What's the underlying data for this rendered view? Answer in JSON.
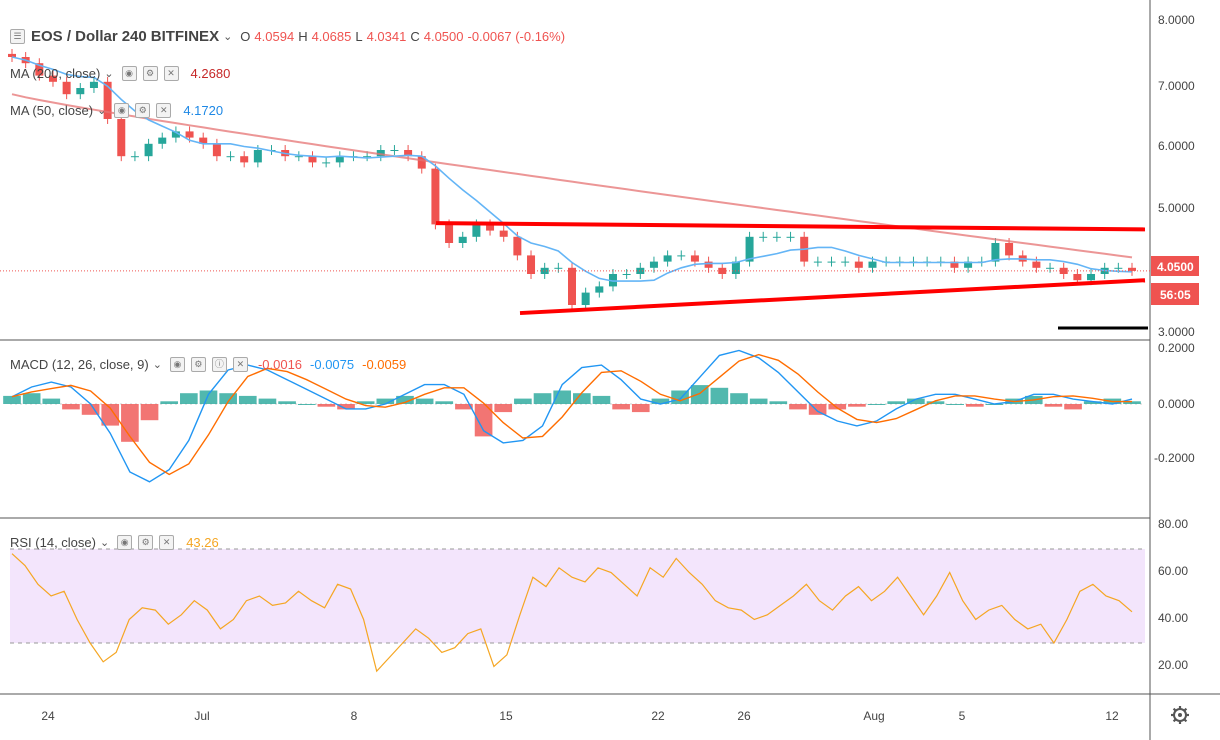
{
  "header": {
    "symbol": "EOS / Dollar",
    "interval": "240",
    "exchange": "BITFINEX",
    "o_label": "O",
    "o_value": "4.0594",
    "h_label": "H",
    "h_value": "4.0685",
    "l_label": "L",
    "l_value": "4.0341",
    "c_label": "C",
    "c_value": "4.0500",
    "change": "-0.0067 (-0.16%)"
  },
  "indicators": {
    "ma200": {
      "label": "MA (200, close)",
      "value": "4.2680",
      "color": "#e57373"
    },
    "ma50": {
      "label": "MA (50, close)",
      "value": "4.1720",
      "color": "#64b5f6"
    },
    "macd": {
      "label": "MACD (12, 26, close, 9)",
      "hist": "-0.0016",
      "macd": "-0.0075",
      "signal": "-0.0059",
      "hist_color": "#ef5350",
      "macd_color": "#2196f3",
      "signal_color": "#ff6d00"
    },
    "rsi": {
      "label": "RSI (14, close)",
      "value": "43.26",
      "color": "#f5a623"
    }
  },
  "price_axis": {
    "ticks": [
      "8.0000",
      "7.0000",
      "6.0000",
      "5.0000",
      "3.0000"
    ],
    "current_price": "4.0500",
    "countdown": "56:05"
  },
  "macd_axis": {
    "ticks": [
      "0.2000",
      "0.0000",
      "-0.2000"
    ]
  },
  "rsi_axis": {
    "ticks": [
      "80.00",
      "60.00",
      "40.00",
      "20.00"
    ]
  },
  "time_axis": {
    "labels": [
      "24",
      "Jul",
      "8",
      "15",
      "22",
      "26",
      "Aug",
      "5",
      "12"
    ]
  },
  "colors": {
    "up": "#26a69a",
    "down": "#ef5350",
    "trendline": "#ff0000",
    "rsi_band": "#f3e5fc"
  },
  "chart_data": [
    {
      "type": "candlestick",
      "ylim": [
        2.9,
        8.3
      ],
      "x_range": [
        "Jun 21",
        "Aug 13"
      ],
      "close_approx": [
        7.5,
        7.4,
        7.2,
        7.1,
        6.9,
        7.0,
        7.1,
        6.5,
        5.9,
        5.9,
        6.1,
        6.2,
        6.3,
        6.2,
        6.1,
        5.9,
        5.9,
        5.8,
        6.0,
        6.0,
        5.9,
        5.9,
        5.8,
        5.8,
        5.9,
        5.9,
        5.9,
        6.0,
        6.0,
        5.9,
        5.7,
        4.8,
        4.5,
        4.6,
        4.8,
        4.7,
        4.6,
        4.3,
        4.0,
        4.1,
        4.1,
        3.5,
        3.7,
        3.8,
        4.0,
        4.0,
        4.1,
        4.2,
        4.3,
        4.3,
        4.2,
        4.1,
        4.0,
        4.2,
        4.6,
        4.6,
        4.6,
        4.6,
        4.2,
        4.2,
        4.2,
        4.2,
        4.1,
        4.2,
        4.2,
        4.2,
        4.2,
        4.2,
        4.2,
        4.1,
        4.2,
        4.2,
        4.5,
        4.3,
        4.2,
        4.1,
        4.1,
        4.0,
        3.9,
        4.0,
        4.1,
        4.1,
        4.05
      ],
      "series": [
        {
          "name": "MA (200, close)",
          "last": 4.268
        },
        {
          "name": "MA (50, close)",
          "last": 4.172
        }
      ],
      "annotations": [
        {
          "kind": "resistance_line",
          "from": [
            4.82,
            "Jul 11"
          ],
          "to": [
            4.72,
            "Aug 13"
          ]
        },
        {
          "kind": "support_line",
          "from": [
            3.37,
            "Jul 16"
          ],
          "to": [
            3.9,
            "Aug 13"
          ]
        }
      ]
    },
    {
      "type": "bar+line",
      "title": "MACD (12, 26, close, 9)",
      "ylim": [
        -0.35,
        0.22
      ],
      "hist": [
        0.03,
        0.04,
        0.02,
        -0.02,
        -0.04,
        -0.08,
        -0.14,
        -0.06,
        0.01,
        0.04,
        0.05,
        0.04,
        0.03,
        0.02,
        0.01,
        0.0,
        -0.01,
        -0.02,
        0.01,
        0.02,
        0.03,
        0.02,
        0.01,
        -0.02,
        -0.12,
        -0.03,
        0.02,
        0.04,
        0.05,
        0.04,
        0.03,
        -0.02,
        -0.03,
        0.02,
        0.05,
        0.07,
        0.06,
        0.04,
        0.02,
        0.01,
        -0.02,
        -0.04,
        -0.02,
        -0.01,
        0.0,
        0.01,
        0.02,
        0.01,
        0.0,
        -0.01,
        0.0,
        0.02,
        0.03,
        -0.01,
        -0.02,
        0.01,
        0.02,
        0.01
      ],
      "macd_last": -0.0075,
      "signal_last": -0.0059
    },
    {
      "type": "line",
      "title": "RSI (14, close)",
      "ylim": [
        10,
        82
      ],
      "bands": [
        30,
        70
      ],
      "values": [
        68,
        63,
        55,
        50,
        52,
        40,
        30,
        22,
        26,
        40,
        45,
        44,
        38,
        42,
        48,
        44,
        36,
        40,
        48,
        50,
        46,
        47,
        52,
        48,
        45,
        55,
        53,
        40,
        18,
        24,
        30,
        36,
        32,
        26,
        28,
        34,
        36,
        20,
        25,
        42,
        58,
        54,
        62,
        58,
        56,
        62,
        60,
        55,
        50,
        62,
        58,
        66,
        60,
        55,
        48,
        45,
        44,
        40,
        42,
        46,
        50,
        55,
        48,
        44,
        50,
        54,
        48,
        52,
        58,
        50,
        42,
        50,
        60,
        48,
        40,
        44,
        46,
        40,
        36,
        38,
        30,
        40,
        52,
        55,
        50,
        48,
        43.26
      ]
    }
  ]
}
